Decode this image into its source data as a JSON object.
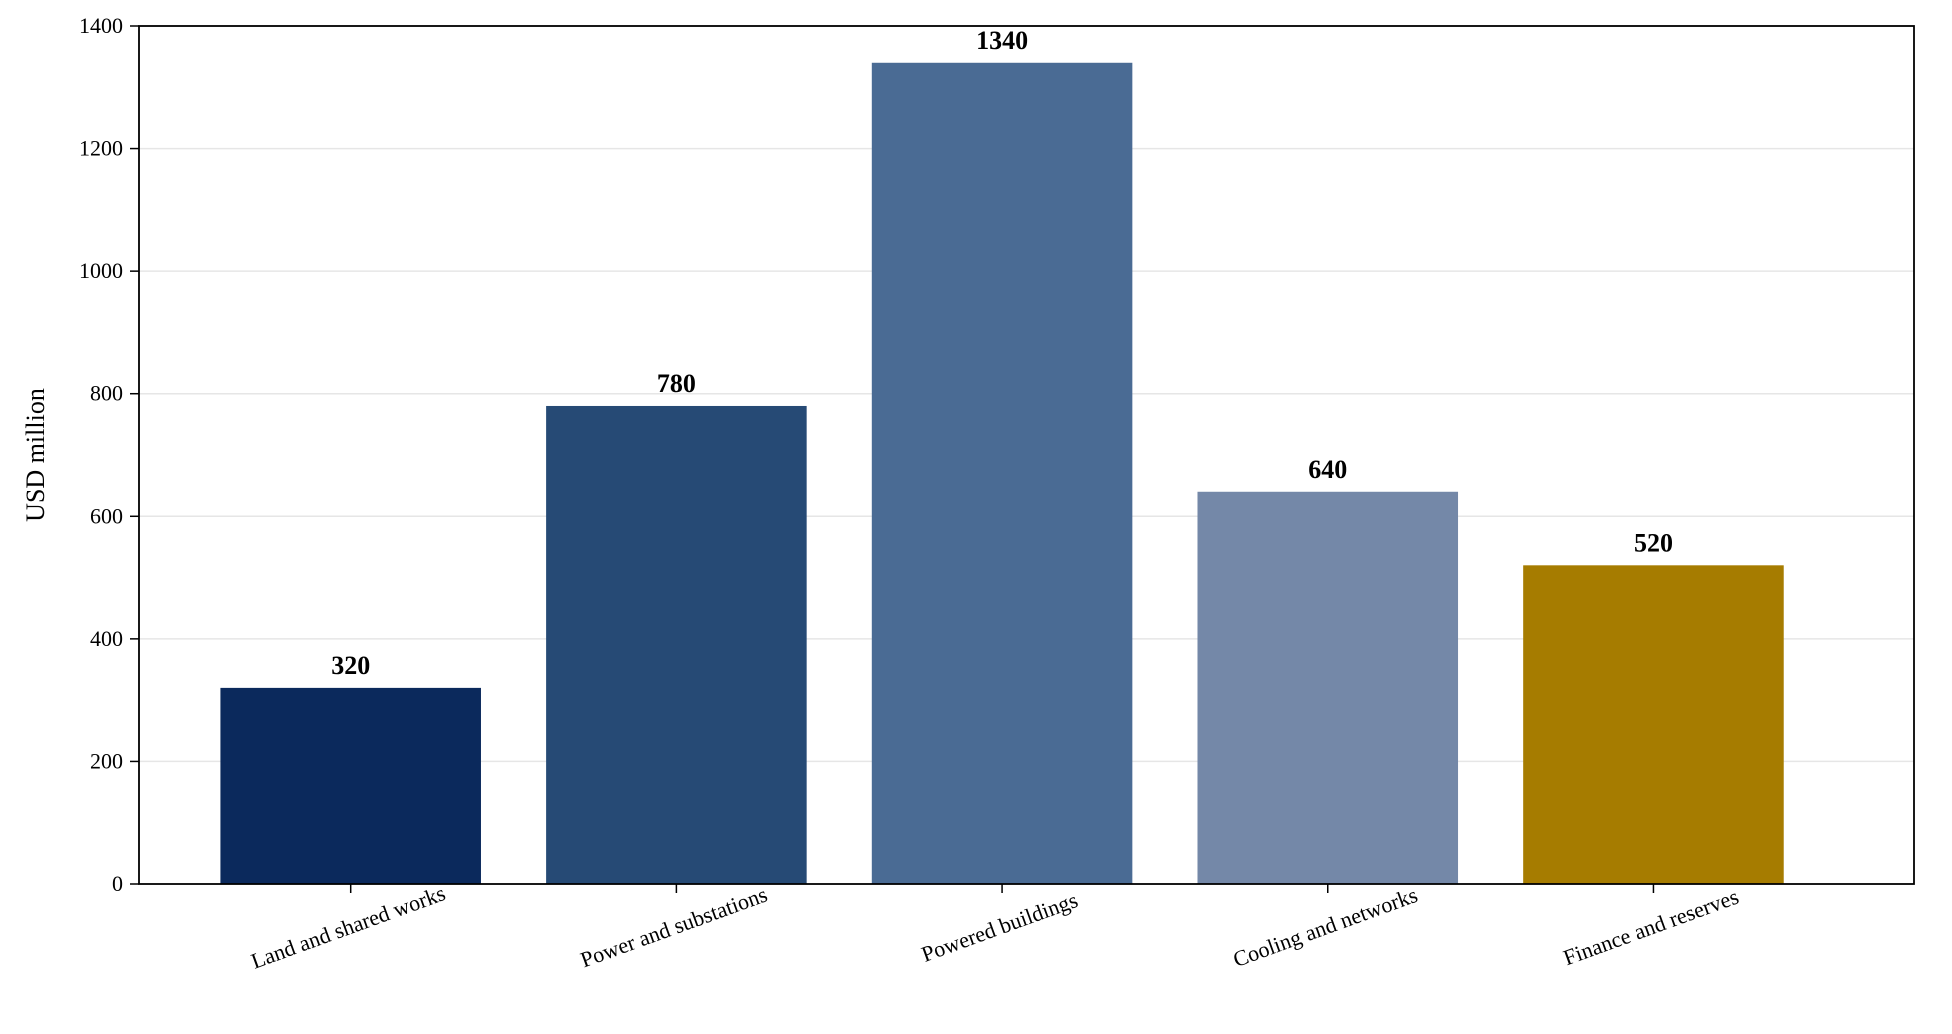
{
  "chart_data": {
    "type": "bar",
    "title": "",
    "xlabel": "",
    "ylabel": "USD million",
    "ylim": [
      0,
      1400
    ],
    "yticks": [
      0,
      200,
      400,
      600,
      800,
      1000,
      1200,
      1400
    ],
    "grid": "horizontal, light",
    "categories": [
      "Land and shared works",
      "Power and substations",
      "Powered buildings",
      "Cooling and networks",
      "Finance and reserves"
    ],
    "values": [
      320,
      780,
      1340,
      640,
      520
    ],
    "data_labels": [
      "320",
      "780",
      "1340",
      "640",
      "520"
    ],
    "colors": [
      "#0b295c",
      "#264a75",
      "#4a6b94",
      "#7488a8",
      "#a67c00"
    ],
    "x_tick_rotation_deg": -20
  }
}
